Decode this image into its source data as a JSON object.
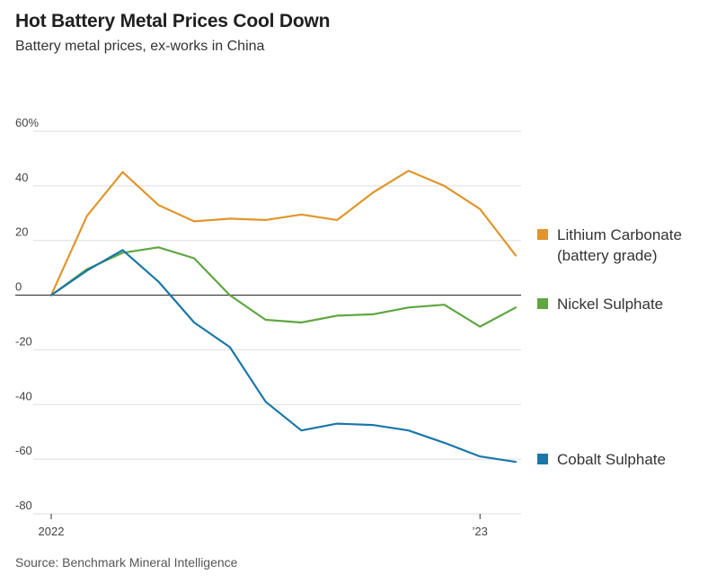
{
  "header": {
    "title": "Hot Battery Metal Prices Cool Down",
    "subtitle": "Battery metal prices, ex-works in China"
  },
  "footer": {
    "source": "Source: Benchmark Mineral Intelligence"
  },
  "chart_data": {
    "type": "line",
    "title": "Hot Battery Metal Prices Cool Down",
    "subtitle": "Battery metal prices, ex-works in China",
    "xlabel": "",
    "ylabel": "",
    "x_tick_labels": [
      "2022",
      "’23"
    ],
    "y_ticks": [
      60,
      40,
      20,
      0,
      -20,
      -40,
      -60,
      -80
    ],
    "y_tick_labels": [
      "60%",
      "40",
      "20",
      "0",
      "-20",
      "-40",
      "-60",
      "-80"
    ],
    "ylim": [
      -80,
      60
    ],
    "x": [
      "2022-01",
      "2022-02",
      "2022-03",
      "2022-04",
      "2022-05",
      "2022-06",
      "2022-07",
      "2022-08",
      "2022-09",
      "2022-10",
      "2022-11",
      "2022-12",
      "2023-01",
      "2023-02"
    ],
    "grid": true,
    "legend_position": "right",
    "series": [
      {
        "name": "Lithium Carbonate (battery grade)",
        "label_lines": [
          "Lithium Carbonate",
          "(battery grade)"
        ],
        "color": "#e0962b",
        "values": [
          0,
          29,
          45,
          33,
          27,
          28,
          27.5,
          29.5,
          27.5,
          37.5,
          45.5,
          40,
          31.5,
          14.5
        ]
      },
      {
        "name": "Nickel Sulphate",
        "label_lines": [
          "Nickel Sulphate"
        ],
        "color": "#5ea641",
        "values": [
          0,
          9.5,
          15.5,
          17.5,
          13.5,
          0,
          -9,
          -10,
          -7.5,
          -7,
          -4.5,
          -3.5,
          -11.5,
          -4.5
        ]
      },
      {
        "name": "Cobalt Sulphate",
        "label_lines": [
          "Cobalt Sulphate"
        ],
        "color": "#1a77a8",
        "values": [
          0,
          9,
          16.5,
          5,
          -10,
          -19,
          -39,
          -49.5,
          -47,
          -47.5,
          -49.5,
          -54,
          -59,
          -61
        ]
      }
    ]
  }
}
